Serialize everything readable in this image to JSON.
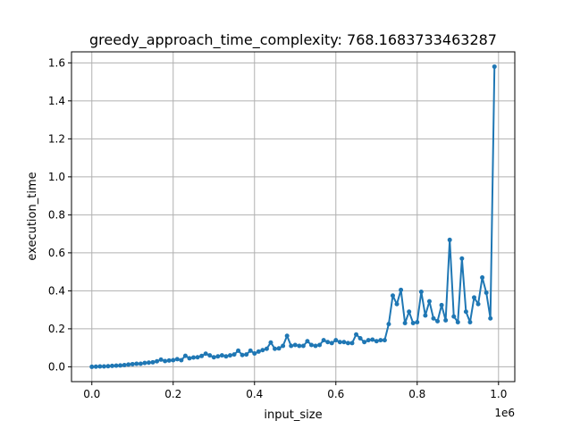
{
  "chart_data": {
    "type": "line",
    "title": "greedy_approach_time_complexity: 768.1683733463287",
    "xlabel": "input_size",
    "ylabel": "execution_time",
    "x_offset_text": "1e6",
    "xlim": [
      -0.05,
      1.04
    ],
    "ylim": [
      -0.078,
      1.658
    ],
    "x_ticks": [
      0.0,
      0.2,
      0.4,
      0.6,
      0.8,
      1.0
    ],
    "x_tick_labels": [
      "0.0",
      "0.2",
      "0.4",
      "0.6",
      "0.8",
      "1.0"
    ],
    "y_ticks": [
      0.0,
      0.2,
      0.4,
      0.6,
      0.8,
      1.0,
      1.2,
      1.4,
      1.6
    ],
    "y_tick_labels": [
      "0.0",
      "0.2",
      "0.4",
      "0.6",
      "0.8",
      "1.0",
      "1.2",
      "1.4",
      "1.6"
    ],
    "grid": true,
    "line_color": "#1f77b4",
    "series": [
      {
        "x": [
          0.0,
          0.01,
          0.02,
          0.03,
          0.04,
          0.05,
          0.06,
          0.07,
          0.08,
          0.09,
          0.1,
          0.11,
          0.12,
          0.13,
          0.14,
          0.15,
          0.16,
          0.17,
          0.18,
          0.19,
          0.2,
          0.21,
          0.22,
          0.23,
          0.24,
          0.25,
          0.26,
          0.27,
          0.28,
          0.29,
          0.3,
          0.31,
          0.32,
          0.33,
          0.34,
          0.35,
          0.36,
          0.37,
          0.38,
          0.39,
          0.4,
          0.41,
          0.42,
          0.43,
          0.44,
          0.45,
          0.46,
          0.47,
          0.48,
          0.49,
          0.5,
          0.51,
          0.52,
          0.53,
          0.54,
          0.55,
          0.56,
          0.57,
          0.58,
          0.59,
          0.6,
          0.61,
          0.62,
          0.63,
          0.64,
          0.65,
          0.66,
          0.67,
          0.68,
          0.69,
          0.7,
          0.71,
          0.72,
          0.73,
          0.74,
          0.75,
          0.76,
          0.77,
          0.78,
          0.79,
          0.8,
          0.81,
          0.82,
          0.83,
          0.84,
          0.85,
          0.86,
          0.87,
          0.88,
          0.89,
          0.9,
          0.91,
          0.92,
          0.93,
          0.94,
          0.95,
          0.96,
          0.97,
          0.98,
          0.99
        ],
        "y": [
          0.0,
          0.001,
          0.002,
          0.002,
          0.003,
          0.005,
          0.006,
          0.007,
          0.009,
          0.012,
          0.014,
          0.016,
          0.016,
          0.02,
          0.022,
          0.024,
          0.029,
          0.038,
          0.03,
          0.033,
          0.035,
          0.04,
          0.035,
          0.058,
          0.045,
          0.049,
          0.05,
          0.057,
          0.069,
          0.06,
          0.05,
          0.055,
          0.06,
          0.055,
          0.06,
          0.065,
          0.085,
          0.062,
          0.065,
          0.085,
          0.07,
          0.08,
          0.088,
          0.095,
          0.128,
          0.095,
          0.097,
          0.11,
          0.163,
          0.11,
          0.115,
          0.11,
          0.11,
          0.135,
          0.115,
          0.11,
          0.115,
          0.14,
          0.13,
          0.125,
          0.14,
          0.13,
          0.13,
          0.125,
          0.125,
          0.17,
          0.15,
          0.13,
          0.14,
          0.143,
          0.135,
          0.14,
          0.14,
          0.225,
          0.375,
          0.33,
          0.405,
          0.23,
          0.29,
          0.23,
          0.235,
          0.395,
          0.27,
          0.345,
          0.255,
          0.24,
          0.325,
          0.245,
          0.668,
          0.265,
          0.235,
          0.57,
          0.29,
          0.235,
          0.365,
          0.33,
          0.47,
          0.39,
          0.255,
          1.58
        ]
      }
    ]
  }
}
